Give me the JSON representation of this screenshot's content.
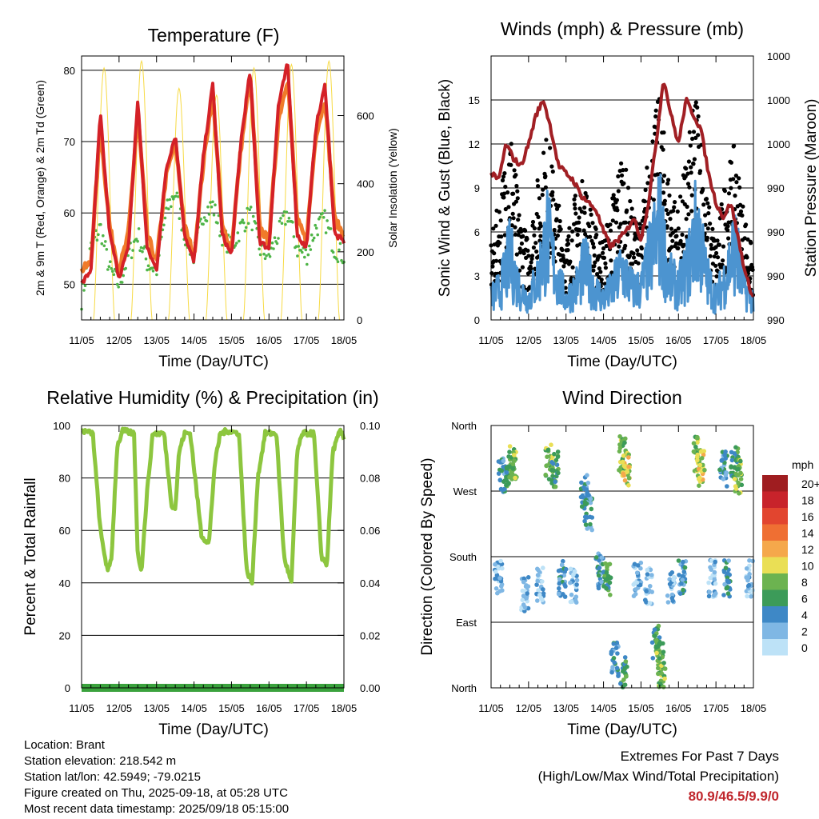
{
  "days": [
    "11/05",
    "12/05",
    "13/05",
    "14/05",
    "15/05",
    "16/05",
    "17/05",
    "18/05"
  ],
  "time_label": "Time (Day/UTC)",
  "colors": {
    "temp_red": "#d42127",
    "temp_orange": "#f07b2a",
    "dewpoint_green": "#4fb548",
    "solar_yellow": "#f7da44",
    "wind_blue": "#4c94d0",
    "gust_black": "#000000",
    "pressure_maroon": "#a11f24",
    "rh_green": "#8dc63f",
    "precip_green": "#3aa23d",
    "extremes_red": "#c0272d"
  },
  "chart_data": [
    {
      "type": "line",
      "title": "Temperature (F)",
      "xlabel": "Time (Day/UTC)",
      "ylabel": "2m & 9m T (Red, Orange) & 2m Td (Green)",
      "ylabel_right": "Solar Insolation (Yellow)",
      "ylim": [
        45,
        82
      ],
      "yticks": [
        50,
        60,
        70,
        80
      ],
      "ylim_right": [
        0,
        775
      ],
      "yticks_right": [
        0,
        200,
        400,
        600
      ],
      "grid": true,
      "series": [
        {
          "name": "2m T",
          "color": "#d42127",
          "x": [
            0,
            0.25,
            0.5,
            0.75,
            1,
            1.25,
            1.5,
            1.75,
            2,
            2.25,
            2.5,
            2.75,
            3,
            3.25,
            3.5,
            3.75,
            4,
            4.25,
            4.5,
            4.75,
            5,
            5.25,
            5.5,
            5.75,
            6,
            6.25,
            6.5,
            6.75,
            7
          ],
          "values": [
            50,
            52,
            74,
            57,
            51,
            55,
            76,
            55,
            52,
            66,
            71,
            57,
            53,
            68,
            78,
            57,
            54,
            70,
            80,
            56,
            55,
            75,
            81,
            57,
            55,
            72,
            78,
            57,
            56
          ]
        },
        {
          "name": "9m T",
          "color": "#f07b2a",
          "x": [
            0,
            0.25,
            0.5,
            0.75,
            1,
            1.25,
            1.5,
            1.75,
            2,
            2.25,
            2.5,
            2.75,
            3,
            3.25,
            3.5,
            3.75,
            4,
            4.25,
            4.5,
            4.75,
            5,
            5.25,
            5.5,
            5.75,
            6,
            6.25,
            6.5,
            6.75,
            7
          ],
          "values": [
            52,
            53,
            72,
            58,
            52,
            57,
            74,
            57,
            53,
            65,
            70,
            58,
            54,
            67,
            77,
            58,
            55,
            69,
            79,
            58,
            56,
            73,
            79,
            59,
            56,
            71,
            76,
            59,
            57
          ]
        },
        {
          "name": "2m Td",
          "color": "#4fb548",
          "x": [
            0,
            0.25,
            0.5,
            0.75,
            1,
            1.25,
            1.5,
            1.75,
            2,
            2.25,
            2.5,
            2.75,
            3,
            3.25,
            3.5,
            3.75,
            4,
            4.25,
            4.5,
            4.75,
            5,
            5.25,
            5.5,
            5.75,
            6,
            6.25,
            6.5,
            6.75,
            7
          ],
          "values": [
            48,
            55,
            58,
            52,
            50,
            54,
            57,
            53,
            52,
            60,
            63,
            57,
            54,
            60,
            61,
            57,
            55,
            58,
            60,
            55,
            54,
            57,
            60,
            55,
            54,
            58,
            59,
            55,
            54
          ]
        },
        {
          "name": "Solar Insolation",
          "axis": "right",
          "color": "#f7da44",
          "peaks": [
            {
              "x": 0.6,
              "value": 740
            },
            {
              "x": 1.6,
              "value": 760
            },
            {
              "x": 2.6,
              "value": 680
            },
            {
              "x": 3.6,
              "value": 660
            },
            {
              "x": 4.6,
              "value": 740
            },
            {
              "x": 5.6,
              "value": 750
            },
            {
              "x": 6.6,
              "value": 760
            }
          ]
        }
      ]
    },
    {
      "type": "scatter",
      "title": "Winds (mph) & Pressure (mb)",
      "xlabel": "Time (Day/UTC)",
      "ylabel": "Sonic Wind & Gust (Blue, Black)",
      "ylabel_right": "Station Pressure (Maroon)",
      "ylim": [
        0,
        18
      ],
      "yticks": [
        0,
        3,
        6,
        9,
        12,
        15
      ],
      "ytick_labels_right": [
        "990",
        "990",
        "990",
        "990",
        "1000",
        "1000",
        "1000"
      ],
      "grid": true,
      "series": [
        {
          "name": "Sonic Wind",
          "color": "#4c94d0",
          "x": [
            0,
            0.25,
            0.5,
            0.75,
            1,
            1.25,
            1.5,
            1.75,
            2,
            2.25,
            2.5,
            2.75,
            3,
            3.25,
            3.5,
            3.75,
            4,
            4.25,
            4.5,
            4.75,
            5,
            5.25,
            5.5,
            5.75,
            6,
            6.25,
            6.5,
            6.75,
            7
          ],
          "values": [
            2,
            3,
            6,
            3,
            2,
            4,
            8,
            4,
            2,
            3,
            5,
            3,
            2,
            3,
            5,
            3,
            3,
            6,
            9,
            4,
            3,
            5,
            9,
            4,
            2,
            4,
            7,
            3,
            2
          ]
        },
        {
          "name": "Gust",
          "color": "#000000",
          "x": [
            0,
            0.25,
            0.5,
            0.75,
            1,
            1.25,
            1.5,
            1.75,
            2,
            2.25,
            2.5,
            2.75,
            3,
            3.25,
            3.5,
            3.75,
            4,
            4.25,
            4.5,
            4.75,
            5,
            5.25,
            5.5,
            5.75,
            6,
            6.25,
            6.5,
            6.75,
            7
          ],
          "values": [
            5,
            8,
            13,
            7,
            5,
            9,
            12,
            8,
            5,
            8,
            9,
            6,
            5,
            8,
            11,
            7,
            6,
            12,
            14,
            9,
            7,
            11,
            15,
            8,
            5,
            9,
            11,
            7,
            4
          ]
        },
        {
          "name": "Station Pressure",
          "color": "#a11f24",
          "x": [
            0,
            0.2,
            0.4,
            0.6,
            0.8,
            1,
            1.2,
            1.4,
            1.6,
            1.8,
            2,
            2.2,
            2.4,
            2.6,
            2.8,
            3,
            3.2,
            3.4,
            3.6,
            3.8,
            4,
            4.2,
            4.4,
            4.6,
            4.8,
            5,
            5.2,
            5.4,
            5.6,
            5.8,
            6,
            6.2,
            6.4,
            6.6,
            6.8,
            7
          ],
          "values": [
            10,
            9.5,
            12,
            11,
            10.5,
            12,
            14,
            15,
            13,
            10.5,
            10,
            9.5,
            8.5,
            8,
            7.5,
            6,
            5,
            5.5,
            6,
            7,
            5.5,
            8,
            12,
            16.5,
            14,
            12,
            15,
            14,
            13,
            10,
            8,
            7,
            8,
            5.5,
            3,
            1.5
          ]
        }
      ]
    },
    {
      "type": "line",
      "title": "Relative Humidity (%) & Precipitation (in)",
      "xlabel": "Time (Day/UTC)",
      "ylabel": "Percent & Total Rainfall",
      "ylim": [
        0,
        100
      ],
      "yticks": [
        0,
        20,
        40,
        60,
        80,
        100
      ],
      "ylim_right": [
        0,
        0.1
      ],
      "yticks_right": [
        "0.00",
        "0.02",
        "0.04",
        "0.06",
        "0.08",
        "0.10"
      ],
      "grid": true,
      "series": [
        {
          "name": "Relative Humidity",
          "color": "#8dc63f",
          "x": [
            0,
            0.3,
            0.5,
            0.7,
            0.8,
            0.95,
            1.1,
            1.4,
            1.5,
            1.6,
            1.75,
            1.9,
            2.2,
            2.4,
            2.5,
            2.6,
            2.75,
            2.9,
            3.2,
            3.4,
            3.55,
            3.7,
            3.9,
            4.2,
            4.4,
            4.55,
            4.7,
            4.9,
            5.2,
            5.4,
            5.6,
            5.75,
            5.9,
            6.2,
            6.4,
            6.55,
            6.7,
            6.9,
            7
          ],
          "values": [
            98,
            97,
            60,
            44,
            50,
            92,
            98,
            97,
            50,
            45,
            75,
            97,
            97,
            70,
            68,
            90,
            97,
            97,
            58,
            55,
            85,
            97,
            98,
            97,
            45,
            40,
            80,
            97,
            97,
            50,
            40,
            90,
            97,
            97,
            50,
            47,
            90,
            98,
            95
          ]
        },
        {
          "name": "Total Precipitation",
          "axis": "right",
          "color": "#3aa23d",
          "x": [
            0,
            7
          ],
          "values": [
            0,
            0
          ]
        }
      ]
    },
    {
      "type": "scatter",
      "title": "Wind Direction",
      "xlabel": "Time (Day/UTC)",
      "ylabel": "Direction (Colored By Speed)",
      "yticks": [
        "North",
        "East",
        "South",
        "West",
        "North"
      ],
      "ylim": [
        0,
        360
      ],
      "legend": {
        "title": "mph",
        "labels": [
          "20+",
          "18",
          "16",
          "14",
          "12",
          "10",
          "8",
          "6",
          "4",
          "2",
          "0"
        ],
        "colors": [
          "#9f1d20",
          "#c8232b",
          "#e2452f",
          "#ef6f33",
          "#f5a84b",
          "#eadf55",
          "#6cb350",
          "#3c9b59",
          "#3e88c6",
          "#7fb7e4",
          "#bde2f7"
        ]
      },
      "points": [
        {
          "x": 0.3,
          "dir": 290,
          "speed": 4
        },
        {
          "x": 0.5,
          "dir": 300,
          "speed": 6
        },
        {
          "x": 0.6,
          "dir": 310,
          "speed": 8
        },
        {
          "x": 0.2,
          "dir": 150,
          "speed": 2
        },
        {
          "x": 0.9,
          "dir": 130,
          "speed": 2
        },
        {
          "x": 1.3,
          "dir": 140,
          "speed": 2
        },
        {
          "x": 1.55,
          "dir": 310,
          "speed": 8
        },
        {
          "x": 1.7,
          "dir": 300,
          "speed": 6
        },
        {
          "x": 1.9,
          "dir": 150,
          "speed": 4
        },
        {
          "x": 2.2,
          "dir": 140,
          "speed": 2
        },
        {
          "x": 2.5,
          "dir": 270,
          "speed": 4
        },
        {
          "x": 2.6,
          "dir": 240,
          "speed": 4
        },
        {
          "x": 2.9,
          "dir": 160,
          "speed": 4
        },
        {
          "x": 3.1,
          "dir": 150,
          "speed": 6
        },
        {
          "x": 3.5,
          "dir": 320,
          "speed": 8
        },
        {
          "x": 3.6,
          "dir": 300,
          "speed": 10
        },
        {
          "x": 3.3,
          "dir": 40,
          "speed": 4
        },
        {
          "x": 3.55,
          "dir": 20,
          "speed": 6
        },
        {
          "x": 3.9,
          "dir": 150,
          "speed": 2
        },
        {
          "x": 4.2,
          "dir": 140,
          "speed": 2
        },
        {
          "x": 4.4,
          "dir": 60,
          "speed": 6
        },
        {
          "x": 4.5,
          "dir": 40,
          "speed": 8
        },
        {
          "x": 4.55,
          "dir": 20,
          "speed": 8
        },
        {
          "x": 4.8,
          "dir": 140,
          "speed": 2
        },
        {
          "x": 5.1,
          "dir": 150,
          "speed": 4
        },
        {
          "x": 5.5,
          "dir": 320,
          "speed": 8
        },
        {
          "x": 5.6,
          "dir": 300,
          "speed": 10
        },
        {
          "x": 5.9,
          "dir": 150,
          "speed": 2
        },
        {
          "x": 6.2,
          "dir": 300,
          "speed": 4
        },
        {
          "x": 6.5,
          "dir": 310,
          "speed": 6
        },
        {
          "x": 6.6,
          "dir": 290,
          "speed": 8
        },
        {
          "x": 6.9,
          "dir": 150,
          "speed": 2
        },
        {
          "x": 6.3,
          "dir": 150,
          "speed": 4
        }
      ]
    }
  ],
  "info": {
    "location": "Location: Brant",
    "elevation": "Station elevation: 218.542 m",
    "latlon": "Station lat/lon: 42.5949; -79.0215",
    "created": "Figure created on Thu, 2025-09-18, at 05:28 UTC",
    "recent": "Most recent data timestamp: 2025/09/18 05:15:00"
  },
  "extremes": {
    "title": "Extremes For Past 7 Days",
    "subtitle": "(High/Low/Max Wind/Total Precipitation)",
    "values": "80.9/46.5/9.9/0"
  }
}
